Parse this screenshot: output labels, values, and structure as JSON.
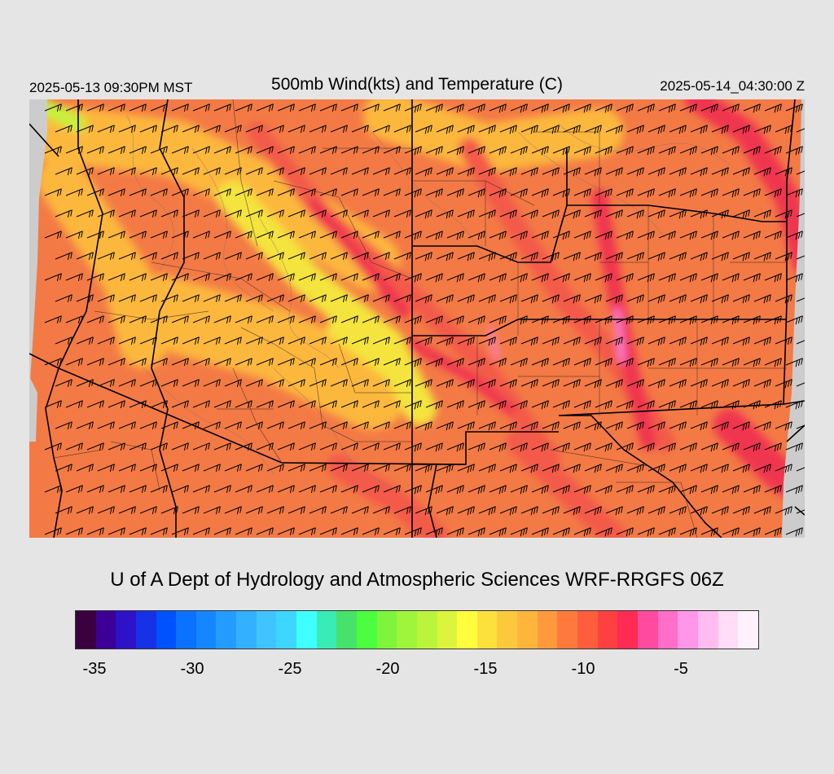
{
  "header": {
    "valid_local": "2025-05-13 09:30PM MST",
    "title": "500mb Wind(kts) and Temperature (C)",
    "valid_utc": "2025-05-14_04:30:00 Z"
  },
  "credit": "U of A Dept of Hydrology and Atmospheric Sciences WRF-RRGFS 06Z",
  "legend": {
    "colors": [
      "#3a0040",
      "#3c0096",
      "#2d12c8",
      "#1631e6",
      "#0052ff",
      "#0a72ff",
      "#1686ff",
      "#249cff",
      "#33b0ff",
      "#40c4ff",
      "#3dd6ff",
      "#40ffff",
      "#39ecb6",
      "#47e26a",
      "#4cff3e",
      "#7ef53c",
      "#9ef53c",
      "#baf53c",
      "#dcf53c",
      "#fffe3c",
      "#fce03c",
      "#fdc93c",
      "#feb53c",
      "#fe9a3c",
      "#fe7a3c",
      "#fe5e3c",
      "#fe4040",
      "#fe2b55",
      "#ff4aa0",
      "#ff6ec8",
      "#ff96e8",
      "#ffbcf0",
      "#ffdcf8",
      "#fff2fc"
    ],
    "tick_labels": [
      "-35",
      "-30",
      "-25",
      "-20",
      "-15",
      "-10",
      "-5"
    ]
  },
  "map": {
    "field_colors": {
      "base": "#f37a45",
      "warm_band": "#f35a4a",
      "hot_band": "#f0344f",
      "cool_band": "#fcb83c",
      "cold_patch": "#f4e43c",
      "coldest_patch": "#c8f03c",
      "peak": "#ff7fd8",
      "nodata": "#cccccc"
    }
  }
}
